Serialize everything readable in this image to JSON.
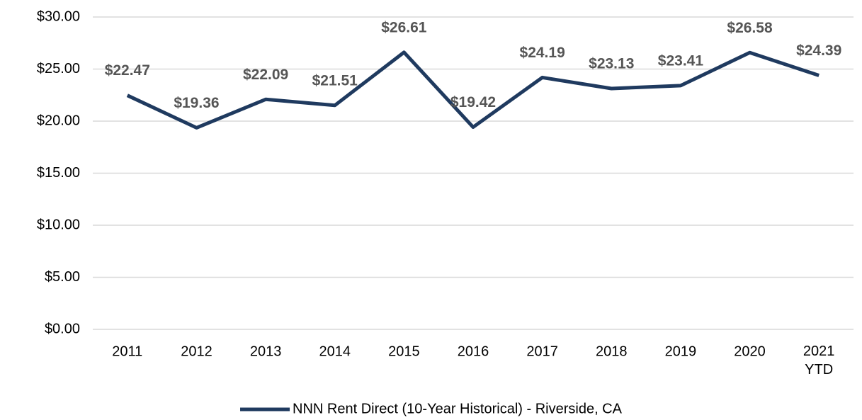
{
  "chart_data": {
    "type": "line",
    "categories": [
      "2011",
      "2012",
      "2013",
      "2014",
      "2015",
      "2016",
      "2017",
      "2018",
      "2019",
      "2020",
      "2021 YTD"
    ],
    "series": [
      {
        "name": "NNN Rent Direct (10-Year Historical) - Riverside, CA",
        "color": "#1f3a5f",
        "values": [
          22.47,
          19.36,
          22.09,
          21.51,
          26.61,
          19.42,
          24.19,
          23.13,
          23.41,
          26.58,
          24.39
        ],
        "value_labels": [
          "$22.47",
          "$19.36",
          "$22.09",
          "$21.51",
          "$26.61",
          "$19.42",
          "$24.19",
          "$23.13",
          "$23.41",
          "$26.58",
          "$24.39"
        ]
      }
    ],
    "ylim": [
      0,
      30
    ],
    "yticks": [
      {
        "value": 0,
        "label": "$0.00"
      },
      {
        "value": 5,
        "label": "$5.00"
      },
      {
        "value": 10,
        "label": "$10.00"
      },
      {
        "value": 15,
        "label": "$15.00"
      },
      {
        "value": 20,
        "label": "$20.00"
      },
      {
        "value": 25,
        "label": "$25.00"
      },
      {
        "value": 30,
        "label": "$30.00"
      }
    ],
    "grid": true,
    "legend": "bottom"
  }
}
